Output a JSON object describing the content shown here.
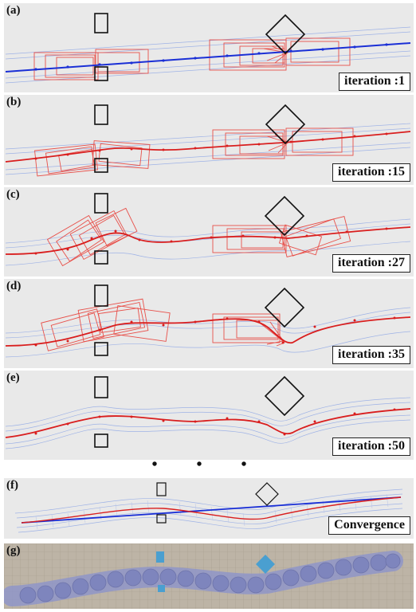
{
  "panels": [
    {
      "label": "(a)",
      "caption": "iteration :1"
    },
    {
      "label": "(b)",
      "caption": "iteration :15"
    },
    {
      "label": "(c)",
      "caption": "iteration :27"
    },
    {
      "label": "(d)",
      "caption": "iteration :35"
    },
    {
      "label": "(e)",
      "caption": "iteration :50"
    },
    {
      "label": "(f)",
      "caption": "Convergence"
    },
    {
      "label": "(g)",
      "caption": ""
    }
  ],
  "ellipsis": "• • •",
  "colors": {
    "panel_bg": "#e9e9e9",
    "initial_path": "#1a2fd6",
    "optimized_path": "#d91e1e",
    "footprint_active": "#e8504a",
    "footprint_faint": "#9fb3e6",
    "obstacle_stroke": "#111111",
    "photo_obstacle": "#4a9fd0",
    "photo_body": "#8f95c8"
  }
}
